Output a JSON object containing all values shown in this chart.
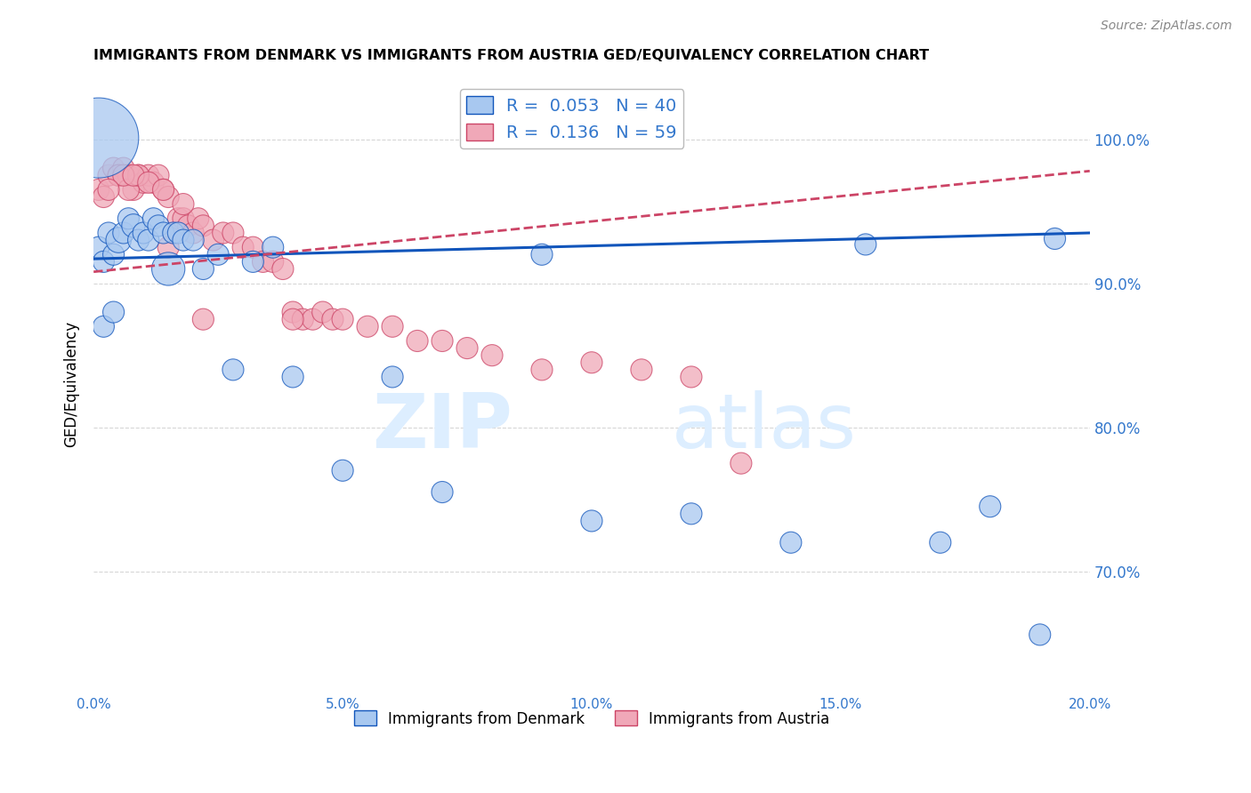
{
  "title": "IMMIGRANTS FROM DENMARK VS IMMIGRANTS FROM AUSTRIA GED/EQUIVALENCY CORRELATION CHART",
  "source": "Source: ZipAtlas.com",
  "ylabel": "GED/Equivalency",
  "ytick_labels": [
    "100.0%",
    "90.0%",
    "80.0%",
    "70.0%"
  ],
  "ytick_values": [
    1.0,
    0.9,
    0.8,
    0.7
  ],
  "xlim": [
    0.0,
    0.2
  ],
  "ylim": [
    0.615,
    1.045
  ],
  "denmark_color": "#a8c8f0",
  "austria_color": "#f0a8b8",
  "trendline_denmark_color": "#1155bb",
  "trendline_austria_color": "#cc4466",
  "background_color": "#ffffff",
  "axis_color": "#3377cc",
  "grid_color": "#cccccc",
  "watermark_color": "#ddeeff",
  "denmark_scatter_x": [
    0.001,
    0.002,
    0.003,
    0.004,
    0.005,
    0.006,
    0.007,
    0.008,
    0.009,
    0.01,
    0.011,
    0.012,
    0.013,
    0.014,
    0.015,
    0.016,
    0.017,
    0.018,
    0.02,
    0.022,
    0.025,
    0.028,
    0.032,
    0.036,
    0.04,
    0.05,
    0.06,
    0.07,
    0.09,
    0.1,
    0.12,
    0.14,
    0.155,
    0.17,
    0.18,
    0.19,
    0.001,
    0.002,
    0.004,
    0.193
  ],
  "denmark_scatter_y": [
    0.925,
    0.915,
    0.935,
    0.92,
    0.93,
    0.935,
    0.945,
    0.94,
    0.93,
    0.935,
    0.93,
    0.945,
    0.94,
    0.935,
    0.91,
    0.935,
    0.935,
    0.93,
    0.93,
    0.91,
    0.92,
    0.84,
    0.915,
    0.925,
    0.835,
    0.77,
    0.835,
    0.755,
    0.92,
    0.735,
    0.74,
    0.72,
    0.927,
    0.72,
    0.745,
    0.656,
    1.001,
    0.87,
    0.88,
    0.931
  ],
  "denmark_scatter_size": [
    25,
    25,
    25,
    25,
    35,
    25,
    25,
    30,
    25,
    25,
    25,
    25,
    25,
    25,
    60,
    25,
    25,
    25,
    25,
    25,
    25,
    25,
    25,
    25,
    25,
    25,
    25,
    25,
    25,
    25,
    25,
    25,
    25,
    25,
    25,
    25,
    350,
    25,
    25,
    25
  ],
  "austria_scatter_x": [
    0.001,
    0.002,
    0.003,
    0.004,
    0.005,
    0.006,
    0.007,
    0.008,
    0.009,
    0.01,
    0.011,
    0.012,
    0.013,
    0.014,
    0.015,
    0.016,
    0.017,
    0.018,
    0.019,
    0.02,
    0.021,
    0.022,
    0.024,
    0.026,
    0.028,
    0.03,
    0.032,
    0.034,
    0.036,
    0.038,
    0.04,
    0.042,
    0.044,
    0.046,
    0.048,
    0.05,
    0.055,
    0.06,
    0.065,
    0.07,
    0.075,
    0.08,
    0.09,
    0.1,
    0.11,
    0.12,
    0.13,
    0.04,
    0.015,
    0.005,
    0.007,
    0.009,
    0.006,
    0.003,
    0.008,
    0.011,
    0.014,
    0.018,
    0.022
  ],
  "austria_scatter_y": [
    0.965,
    0.96,
    0.975,
    0.98,
    0.975,
    0.98,
    0.975,
    0.965,
    0.975,
    0.97,
    0.975,
    0.97,
    0.975,
    0.965,
    0.96,
    0.935,
    0.945,
    0.945,
    0.94,
    0.935,
    0.945,
    0.94,
    0.93,
    0.935,
    0.935,
    0.925,
    0.925,
    0.915,
    0.915,
    0.91,
    0.88,
    0.875,
    0.875,
    0.88,
    0.875,
    0.875,
    0.87,
    0.87,
    0.86,
    0.86,
    0.855,
    0.85,
    0.84,
    0.845,
    0.84,
    0.835,
    0.775,
    0.875,
    0.925,
    0.975,
    0.965,
    0.975,
    0.975,
    0.965,
    0.975,
    0.97,
    0.965,
    0.955,
    0.875
  ],
  "austria_scatter_size": [
    25,
    25,
    25,
    25,
    25,
    25,
    25,
    25,
    25,
    25,
    25,
    25,
    25,
    25,
    25,
    25,
    25,
    25,
    25,
    25,
    25,
    25,
    25,
    25,
    25,
    25,
    25,
    25,
    25,
    25,
    25,
    25,
    25,
    25,
    25,
    25,
    25,
    25,
    25,
    25,
    25,
    25,
    25,
    25,
    25,
    25,
    25,
    25,
    25,
    25,
    25,
    25,
    25,
    25,
    25,
    25,
    25,
    25,
    25
  ],
  "xtick_vals": [
    0.0,
    0.05,
    0.1,
    0.15,
    0.2
  ],
  "xtick_labels": [
    "0.0%",
    "5.0%",
    "10.0%",
    "15.0%",
    "20.0%"
  ]
}
